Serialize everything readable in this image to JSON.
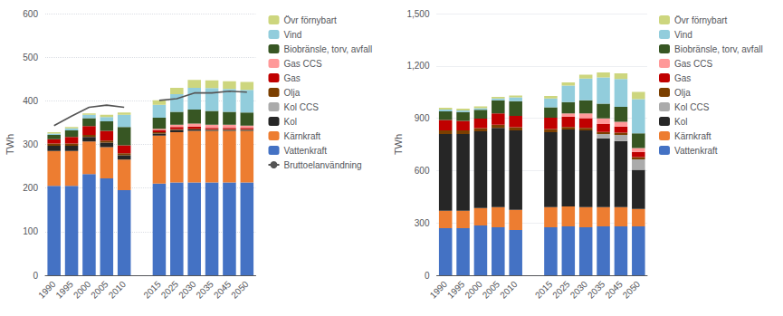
{
  "chart_data": [
    {
      "type": "bar",
      "stacked": true,
      "grid": true,
      "legend": "right",
      "ylabel": "TWh",
      "ylim": [
        0,
        600
      ],
      "yticks": [
        0,
        100,
        200,
        300,
        400,
        500,
        600
      ],
      "categories": [
        "1990",
        "1995",
        "2000",
        "2005",
        "2010",
        null,
        "2015",
        "2025",
        "2030",
        "2035",
        "2045",
        "2050"
      ],
      "series": [
        {
          "name": "Vattenkraft",
          "color": "#4472C4",
          "values": [
            205,
            205,
            232,
            222,
            195,
            null,
            210,
            213,
            213,
            213,
            213,
            213
          ]
        },
        {
          "name": "Kärnkraft",
          "color": "#ED7D31",
          "values": [
            80,
            80,
            75,
            72,
            70,
            null,
            110,
            115,
            118,
            118,
            118,
            118
          ]
        },
        {
          "name": "Kol",
          "color": "#262626",
          "values": [
            12,
            12,
            10,
            10,
            10,
            null,
            5,
            5,
            3,
            2,
            2,
            2
          ]
        },
        {
          "name": "Kol CCS",
          "color": "#ABABAB",
          "values": [
            0,
            0,
            0,
            0,
            0,
            null,
            0,
            0,
            0,
            0,
            0,
            0
          ]
        },
        {
          "name": "Olja",
          "color": "#7B3F00",
          "values": [
            5,
            5,
            5,
            5,
            5,
            null,
            3,
            2,
            2,
            2,
            2,
            2
          ]
        },
        {
          "name": "Gas",
          "color": "#C00000",
          "values": [
            10,
            15,
            20,
            22,
            18,
            null,
            5,
            5,
            5,
            3,
            3,
            3
          ]
        },
        {
          "name": "Gas CCS",
          "color": "#FF9999",
          "values": [
            0,
            0,
            0,
            0,
            0,
            null,
            3,
            5,
            7,
            7,
            7,
            5
          ]
        },
        {
          "name": "Biobränsle, torv, avfall",
          "color": "#375623",
          "values": [
            10,
            15,
            18,
            22,
            42,
            null,
            25,
            30,
            32,
            32,
            30,
            30
          ]
        },
        {
          "name": "Vind",
          "color": "#92CDDC",
          "values": [
            3,
            5,
            8,
            10,
            28,
            null,
            30,
            40,
            50,
            52,
            52,
            52
          ]
        },
        {
          "name": "Övr förnybart",
          "color": "#CDD67E",
          "values": [
            3,
            3,
            3,
            5,
            5,
            null,
            10,
            15,
            18,
            18,
            18,
            18
          ]
        },
        {
          "name": "Bruttoelanvändning",
          "type": "line",
          "color": "#555555",
          "values": [
            343,
            365,
            385,
            390,
            385,
            null,
            401,
            405,
            418,
            418,
            422,
            420
          ]
        }
      ]
    },
    {
      "type": "bar",
      "stacked": true,
      "grid": true,
      "legend": "right",
      "ylabel": "TWh",
      "ylim": [
        0,
        1500
      ],
      "yticks": [
        0,
        300,
        600,
        900,
        1200,
        1500
      ],
      "categories": [
        "1990",
        "1995",
        "2000",
        "2005",
        "2010",
        null,
        "2015",
        "2025",
        "2030",
        "2035",
        "2045",
        "2050"
      ],
      "series": [
        {
          "name": "Vattenkraft",
          "color": "#4472C4",
          "values": [
            270,
            270,
            285,
            275,
            260,
            null,
            275,
            280,
            275,
            280,
            280,
            280
          ]
        },
        {
          "name": "Kärnkraft",
          "color": "#ED7D31",
          "values": [
            100,
            100,
            100,
            115,
            115,
            null,
            115,
            115,
            115,
            110,
            110,
            100
          ]
        },
        {
          "name": "Kol",
          "color": "#262626",
          "values": [
            440,
            440,
            440,
            455,
            455,
            null,
            430,
            440,
            440,
            395,
            380,
            225
          ]
        },
        {
          "name": "Kol CCS",
          "color": "#ABABAB",
          "values": [
            0,
            0,
            0,
            0,
            0,
            null,
            0,
            0,
            0,
            25,
            35,
            60
          ]
        },
        {
          "name": "Olja",
          "color": "#7B3F00",
          "values": [
            20,
            20,
            18,
            18,
            18,
            null,
            18,
            15,
            15,
            12,
            12,
            12
          ]
        },
        {
          "name": "Gas",
          "color": "#C00000",
          "values": [
            60,
            55,
            55,
            65,
            65,
            null,
            65,
            60,
            55,
            45,
            35,
            30
          ]
        },
        {
          "name": "Gas CCS",
          "color": "#FF9999",
          "values": [
            0,
            0,
            0,
            0,
            0,
            null,
            0,
            18,
            28,
            32,
            28,
            22
          ]
        },
        {
          "name": "Biobränsle, torv, avfall",
          "color": "#375623",
          "values": [
            50,
            50,
            50,
            75,
            85,
            null,
            60,
            65,
            75,
            85,
            85,
            85
          ]
        },
        {
          "name": "Vind",
          "color": "#92CDDC",
          "values": [
            10,
            10,
            10,
            10,
            22,
            null,
            50,
            95,
            125,
            150,
            160,
            195
          ]
        },
        {
          "name": "Övr förnybart",
          "color": "#CDD67E",
          "values": [
            10,
            10,
            10,
            10,
            10,
            null,
            15,
            18,
            22,
            28,
            32,
            42
          ]
        }
      ]
    }
  ]
}
